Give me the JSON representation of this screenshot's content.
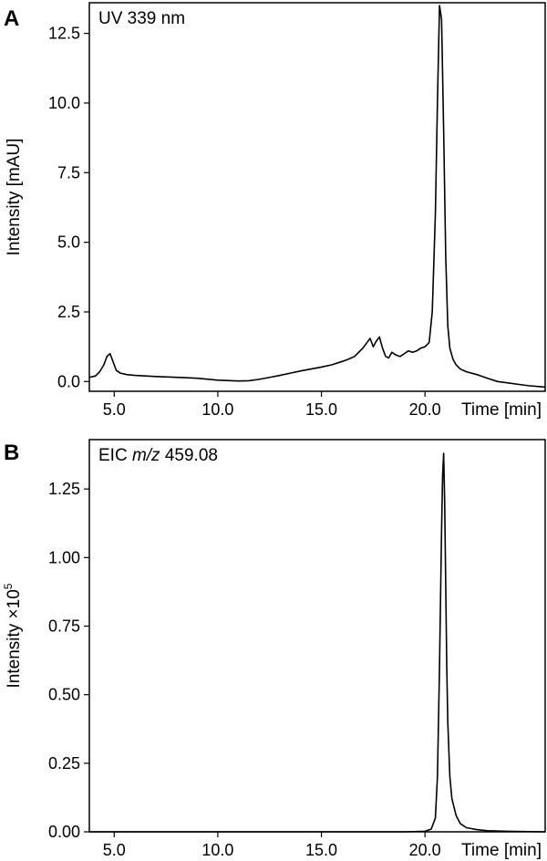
{
  "chart_data": [
    {
      "type": "line",
      "panel_label": "A",
      "title": "UV 339 nm",
      "ylabel": "Intensity [mAU]",
      "xlabel": "Time [min]",
      "xlim": [
        3.8,
        25.8
      ],
      "ylim": [
        -0.35,
        13.6
      ],
      "xticks": [
        5,
        10,
        15,
        20
      ],
      "xtick_labels": [
        "5.0",
        "10.0",
        "15.0",
        "20.0"
      ],
      "yticks": [
        0,
        2.5,
        5,
        7.5,
        10,
        12.5
      ],
      "ytick_labels": [
        "0.0",
        "2.5",
        "5.0",
        "7.5",
        "10.0",
        "12.5"
      ],
      "grid": false,
      "series": [
        {
          "x": [
            3.8,
            4.1,
            4.3,
            4.5,
            4.65,
            4.8,
            4.95,
            5.1,
            5.3,
            5.6,
            6.0,
            7.0,
            8.0,
            9.0,
            10.0,
            11.0,
            11.5,
            12.0,
            12.5,
            13.0,
            13.5,
            14.0,
            14.5,
            15.0,
            15.5,
            16.0,
            16.3,
            16.6,
            16.8,
            17.0,
            17.2,
            17.35,
            17.5,
            17.65,
            17.8,
            17.95,
            18.1,
            18.25,
            18.4,
            18.6,
            18.8,
            19.0,
            19.2,
            19.4,
            19.6,
            19.8,
            20.0,
            20.2,
            20.35,
            20.5,
            20.6,
            20.7,
            20.8,
            20.9,
            21.0,
            21.1,
            21.2,
            21.35,
            21.5,
            21.7,
            22.0,
            22.5,
            23.0,
            23.5,
            24.0,
            24.5,
            25.0,
            25.5,
            25.8
          ],
          "y": [
            0.15,
            0.2,
            0.35,
            0.6,
            0.9,
            1.0,
            0.7,
            0.4,
            0.3,
            0.25,
            0.22,
            0.18,
            0.15,
            0.12,
            0.05,
            0.02,
            0.03,
            0.08,
            0.15,
            0.22,
            0.3,
            0.38,
            0.45,
            0.52,
            0.6,
            0.72,
            0.8,
            0.9,
            1.05,
            1.2,
            1.4,
            1.55,
            1.25,
            1.45,
            1.6,
            1.2,
            0.9,
            0.85,
            1.05,
            0.95,
            0.9,
            1.0,
            1.1,
            1.05,
            1.1,
            1.2,
            1.25,
            1.4,
            2.5,
            6.0,
            10.0,
            13.5,
            13.0,
            9.0,
            4.5,
            2.0,
            1.2,
            0.8,
            0.6,
            0.45,
            0.35,
            0.25,
            0.12,
            0.0,
            -0.05,
            -0.1,
            -0.15,
            -0.18,
            -0.2
          ]
        }
      ]
    },
    {
      "type": "line",
      "panel_label": "B",
      "title": "EIC m/z 459.08",
      "title_prefix": "EIC ",
      "title_italic": "m/z",
      "title_suffix": " 459.08",
      "ylabel": "Intensity ×10",
      "ylabel_prefix": "Intensity ×10",
      "ylabel_superscript": "5",
      "xlabel": "Time [min]",
      "xlim": [
        3.8,
        25.8
      ],
      "ylim": [
        0,
        1.43
      ],
      "xticks": [
        5,
        10,
        15,
        20
      ],
      "xtick_labels": [
        "5.0",
        "10.0",
        "15.0",
        "20.0"
      ],
      "yticks": [
        0,
        0.25,
        0.5,
        0.75,
        1.0,
        1.25
      ],
      "ytick_labels": [
        "0.00",
        "0.25",
        "0.50",
        "0.75",
        "1.00",
        "1.25"
      ],
      "grid": false,
      "series": [
        {
          "x": [
            3.8,
            6.0,
            10.0,
            15.0,
            19.0,
            20.0,
            20.3,
            20.5,
            20.6,
            20.7,
            20.8,
            20.85,
            20.9,
            20.95,
            21.0,
            21.05,
            21.1,
            21.2,
            21.3,
            21.5,
            21.7,
            22.0,
            22.5,
            23.0,
            24.0,
            25.8
          ],
          "y": [
            0.0,
            0.0,
            0.0,
            0.0,
            0.0,
            0.002,
            0.01,
            0.05,
            0.2,
            0.6,
            1.1,
            1.3,
            1.38,
            1.2,
            0.9,
            0.6,
            0.4,
            0.2,
            0.12,
            0.06,
            0.03,
            0.015,
            0.008,
            0.004,
            0.002,
            0.0
          ]
        }
      ]
    }
  ]
}
